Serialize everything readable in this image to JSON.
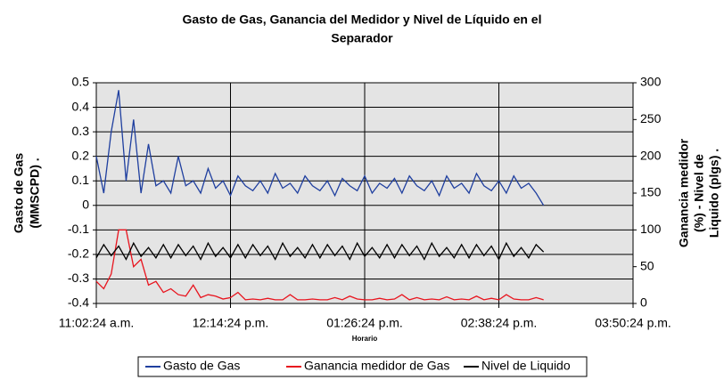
{
  "chart_data": {
    "type": "line",
    "title": [
      "Gasto de Gas, Ganancia del Medidor y Nivel de Líquido en el",
      "Separador"
    ],
    "x_label": "Horario",
    "y_label": [
      "Gasto de Gas",
      "(MMSCPD)        ."
    ],
    "y2_label": [
      "Ganancia medidor",
      "(%) - Nivel de",
      "Liquido (plgs)     ."
    ],
    "xlim": [
      662.4,
      950.4
    ],
    "xticks": [
      {
        "value": 662.4,
        "label": "11:02:24 a.m."
      },
      {
        "value": 734.4,
        "label": "12:14:24 p.m."
      },
      {
        "value": 806.4,
        "label": "01:26:24 p.m."
      },
      {
        "value": 878.4,
        "label": "02:38:24 p.m."
      },
      {
        "value": 950.4,
        "label": "03:50:24 p.m."
      }
    ],
    "ylim": [
      -0.4,
      0.5
    ],
    "yticks": [
      0.5,
      0.4,
      0.3,
      0.2,
      0.1,
      0,
      -0.1,
      -0.2,
      -0.3,
      -0.4
    ],
    "y2lim": [
      0,
      300
    ],
    "y2ticks": [
      300,
      250,
      200,
      150,
      100,
      50,
      0
    ],
    "grid": true,
    "legend": "bottom",
    "x": [
      662.4,
      666.4,
      670.4,
      674.4,
      678.4,
      682.4,
      686.4,
      690.4,
      694.4,
      698.4,
      702.4,
      706.4,
      710.4,
      714.4,
      718.4,
      722.4,
      726.4,
      730.4,
      734.4,
      738.4,
      742.4,
      746.4,
      750.4,
      754.4,
      758.4,
      762.4,
      766.4,
      770.4,
      774.4,
      778.4,
      782.4,
      786.4,
      790.4,
      794.4,
      798.4,
      802.4,
      806.4,
      810.4,
      814.4,
      818.4,
      822.4,
      826.4,
      830.4,
      834.4,
      838.4,
      842.4,
      846.4,
      850.4,
      854.4,
      858.4,
      862.4,
      866.4,
      870.4,
      874.4,
      878.4,
      882.4,
      886.4,
      890.4,
      894.4,
      898.4,
      902.4
    ],
    "series": [
      {
        "name": "Gasto de Gas",
        "color": "#1f3f9f",
        "values": [
          0.2,
          0.05,
          0.3,
          0.47,
          0.1,
          0.35,
          0.05,
          0.25,
          0.08,
          0.1,
          0.05,
          0.2,
          0.08,
          0.1,
          0.05,
          0.15,
          0.07,
          0.1,
          0.04,
          0.12,
          0.08,
          0.06,
          0.1,
          0.05,
          0.13,
          0.07,
          0.09,
          0.05,
          0.12,
          0.08,
          0.06,
          0.1,
          0.04,
          0.11,
          0.08,
          0.06,
          0.12,
          0.05,
          0.09,
          0.07,
          0.11,
          0.05,
          0.12,
          0.08,
          0.06,
          0.1,
          0.04,
          0.12,
          0.07,
          0.09,
          0.05,
          0.13,
          0.08,
          0.06,
          0.1,
          0.05,
          0.12,
          0.07,
          0.09,
          0.05,
          0
        ]
      },
      {
        "name": "Ganancia medidor de Gas",
        "color": "#e8141e",
        "axis": "y2",
        "values": [
          30,
          20,
          40,
          100,
          100,
          50,
          60,
          25,
          30,
          15,
          20,
          12,
          10,
          25,
          8,
          12,
          10,
          6,
          8,
          15,
          5,
          6,
          5,
          7,
          5,
          5,
          12,
          5,
          5,
          6,
          5,
          5,
          8,
          5,
          10,
          6,
          5,
          5,
          7,
          5,
          6,
          12,
          5,
          8,
          5,
          6,
          5,
          9,
          5,
          6,
          5,
          10,
          5,
          7,
          5,
          12,
          6,
          5,
          5,
          8,
          5
        ]
      },
      {
        "name": "Nivel de  Liquido",
        "color": "#000000",
        "axis": "y2",
        "values": [
          62,
          80,
          65,
          78,
          60,
          82,
          64,
          76,
          62,
          80,
          62,
          80,
          65,
          78,
          60,
          82,
          64,
          76,
          62,
          80,
          62,
          80,
          65,
          78,
          60,
          82,
          64,
          76,
          62,
          80,
          62,
          80,
          65,
          78,
          60,
          82,
          64,
          76,
          62,
          80,
          62,
          80,
          65,
          78,
          60,
          82,
          64,
          76,
          62,
          80,
          62,
          80,
          65,
          78,
          60,
          82,
          64,
          76,
          62,
          80,
          70
        ]
      }
    ]
  }
}
